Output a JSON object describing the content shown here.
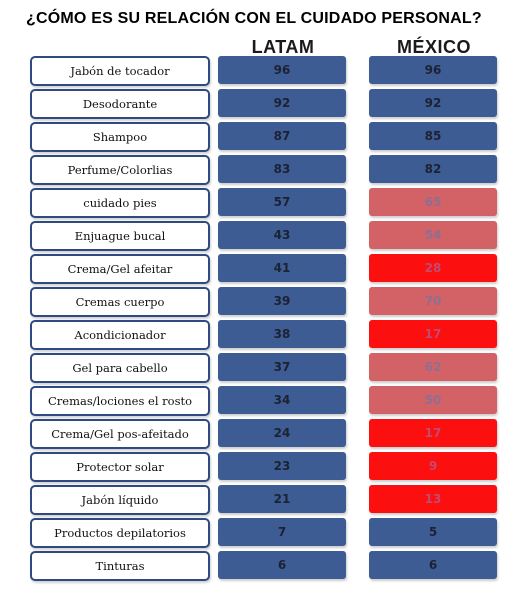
{
  "title": "¿CÓMO ES SU RELACIÓN CON EL CUIDADO PERSONAL?",
  "colors": {
    "blue": "#3d5c93",
    "pink": "#d26266",
    "red": "#fb0f0f",
    "label_border": "#2e4a80"
  },
  "chart_data": {
    "type": "table",
    "title": "¿CÓMO ES SU RELACIÓN CON EL CUIDADO PERSONAL?",
    "columns": [
      "LATAM",
      "MÉXICO"
    ],
    "categories": [
      "Jabón de tocador",
      "Desodorante",
      "Shampoo",
      "Perfume/Colorlias",
      "cuidado pies",
      "Enjuague bucal",
      "Crema/Gel afeitar",
      "Cremas cuerpo",
      "Acondicionador",
      "Gel para cabello",
      "Cremas/lociones el rosto",
      "Crema/Gel pos-afeitado",
      "Protector solar",
      "Jabón líquido",
      "Productos depilatorios",
      "Tinturas"
    ],
    "series": [
      {
        "name": "LATAM",
        "values": [
          96,
          92,
          87,
          83,
          57,
          43,
          41,
          39,
          38,
          37,
          34,
          24,
          23,
          21,
          7,
          6
        ]
      },
      {
        "name": "MÉXICO",
        "values": [
          96,
          92,
          85,
          82,
          65,
          54,
          28,
          70,
          17,
          62,
          50,
          17,
          9,
          13,
          5,
          6
        ]
      }
    ],
    "mexico_colors": [
      "blue",
      "blue",
      "blue",
      "blue",
      "pink",
      "pink",
      "red",
      "pink",
      "red",
      "pink",
      "pink",
      "red",
      "red",
      "red",
      "blue",
      "blue"
    ]
  }
}
